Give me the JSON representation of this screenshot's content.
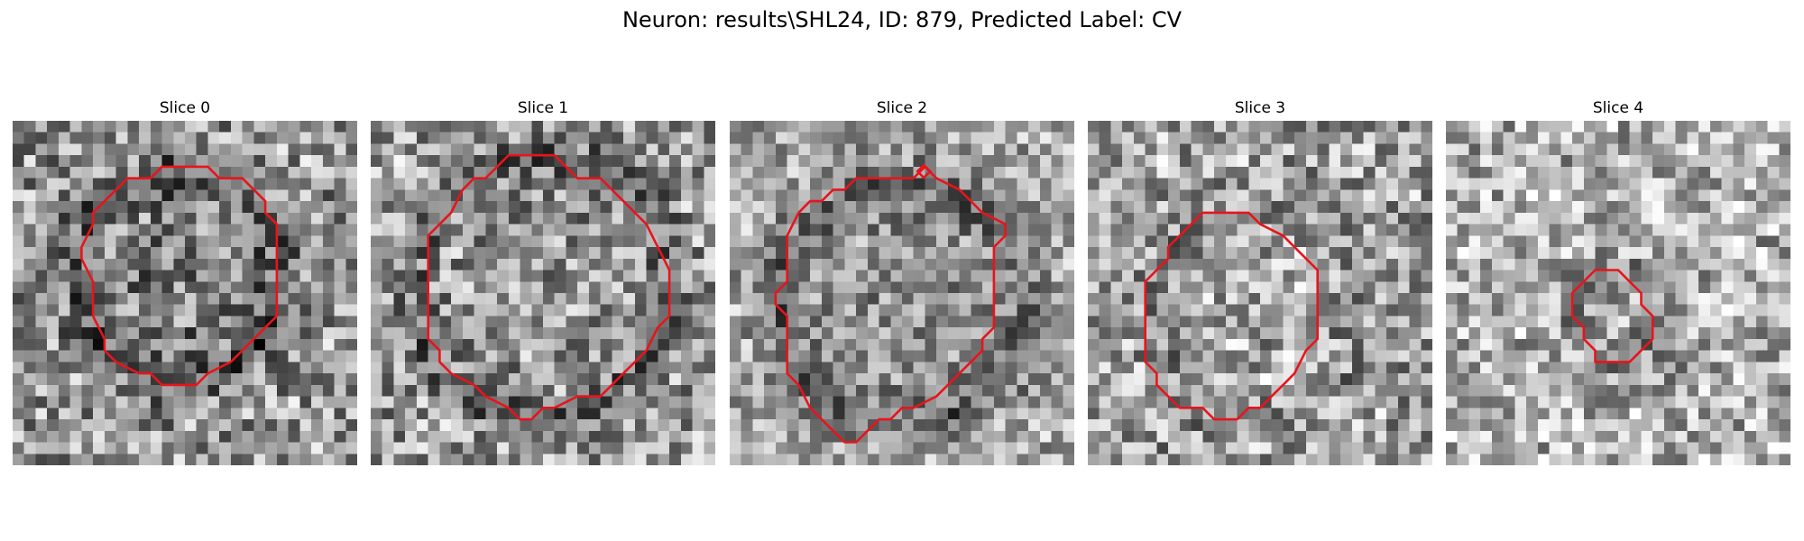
{
  "figure": {
    "title": "Neuron: results\\SHL24, ID: 879, Predicted Label: CV"
  },
  "panels": [
    {
      "title": "Slice 0",
      "outline_color": "#e8141c"
    },
    {
      "title": "Slice 1",
      "outline_color": "#e8141c"
    },
    {
      "title": "Slice 2",
      "outline_color": "#e8141c"
    },
    {
      "title": "Slice 3",
      "outline_color": "#e8141c"
    },
    {
      "title": "Slice 4",
      "outline_color": "#e8141c"
    }
  ],
  "colormap": "gray"
}
